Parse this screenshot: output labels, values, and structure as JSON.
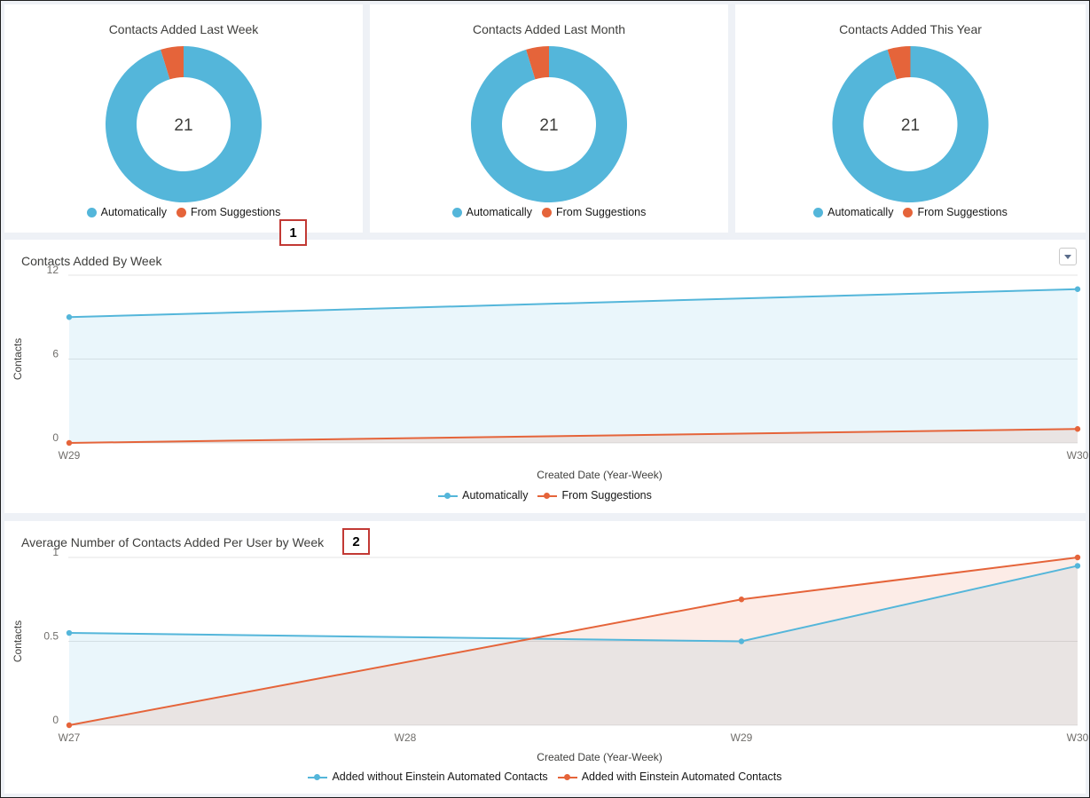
{
  "colors": {
    "automatic": "#54b6da",
    "suggestions": "#e5643a",
    "badge_border": "#c23934"
  },
  "donut_charts": [
    {
      "title": "Contacts Added Last Week",
      "total": "21"
    },
    {
      "title": "Contacts Added Last Month",
      "total": "21"
    },
    {
      "title": "Contacts Added This Year",
      "total": "21"
    }
  ],
  "donut_legend": {
    "automatic": "Automatically",
    "suggestions": "From Suggestions"
  },
  "badges": {
    "one": "1",
    "two": "2"
  },
  "menu": {
    "icon": "chevron-down-icon"
  },
  "weekly_chart": {
    "title": "Contacts Added By Week",
    "ylabel": "Contacts",
    "xlabel": "Created Date (Year-Week)",
    "legend": {
      "automatic": "Automatically",
      "suggestions": "From Suggestions"
    }
  },
  "avg_chart": {
    "title": "Average Number of Contacts Added Per User by Week",
    "ylabel": "Contacts",
    "xlabel": "Created Date (Year-Week)",
    "legend": {
      "without": "Added without Einstein Automated Contacts",
      "with": "Added with Einstein Automated Contacts"
    }
  },
  "chart_data": [
    {
      "type": "pie",
      "title": "Contacts Added Last Week",
      "categories": [
        "Automatically",
        "From Suggestions"
      ],
      "values": [
        20,
        1
      ],
      "center_label": "21"
    },
    {
      "type": "pie",
      "title": "Contacts Added Last Month",
      "categories": [
        "Automatically",
        "From Suggestions"
      ],
      "values": [
        20,
        1
      ],
      "center_label": "21"
    },
    {
      "type": "pie",
      "title": "Contacts Added This Year",
      "categories": [
        "Automatically",
        "From Suggestions"
      ],
      "values": [
        20,
        1
      ],
      "center_label": "21"
    },
    {
      "type": "area",
      "title": "Contacts Added By Week",
      "xlabel": "Created Date (Year-Week)",
      "ylabel": "Contacts",
      "categories": [
        "W29",
        "W30"
      ],
      "yticks": [
        0,
        6,
        12
      ],
      "ylim": [
        0,
        12
      ],
      "grid": true,
      "legend_position": "bottom",
      "series": [
        {
          "name": "Automatically",
          "values": [
            9,
            11
          ]
        },
        {
          "name": "From Suggestions",
          "values": [
            0,
            1
          ]
        }
      ]
    },
    {
      "type": "area",
      "title": "Average Number of Contacts Added Per User by Week",
      "xlabel": "Created Date (Year-Week)",
      "ylabel": "Contacts",
      "categories": [
        "W27",
        "W28",
        "W29",
        "W30"
      ],
      "yticks": [
        0,
        0.5,
        1
      ],
      "ylim": [
        0,
        1
      ],
      "grid": true,
      "legend_position": "bottom",
      "series": [
        {
          "name": "Added without Einstein Automated Contacts",
          "x": [
            "W27",
            "W29",
            "W30"
          ],
          "values": [
            0.55,
            0.5,
            0.95
          ]
        },
        {
          "name": "Added with Einstein Automated Contacts",
          "x": [
            "W27",
            "W29",
            "W30"
          ],
          "values": [
            0,
            0.75,
            1
          ]
        }
      ]
    }
  ]
}
